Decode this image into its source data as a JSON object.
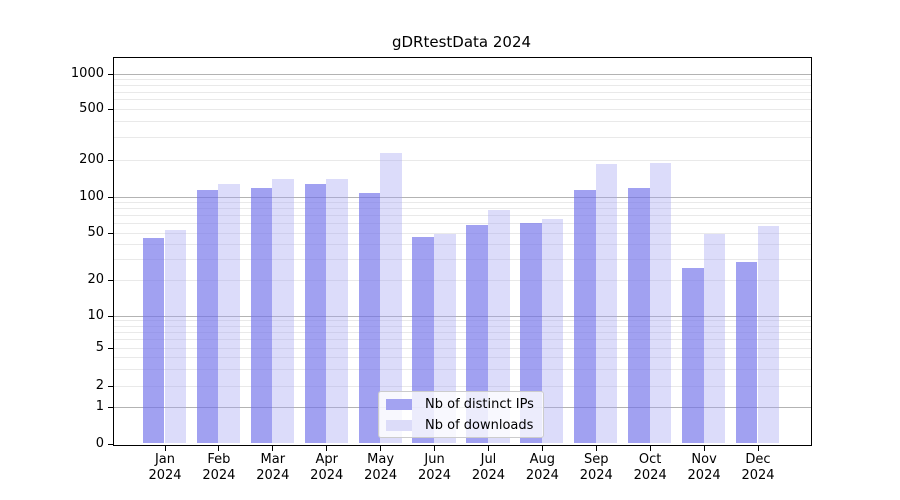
{
  "title": "gDRtestData 2024",
  "year": "2024",
  "colors": {
    "bar_distinct_ips": "rgba(113,113,234,0.66)",
    "bar_downloads": "rgba(165,165,242,0.39)",
    "bar_distinct_ips_hex": "#a3a3f1",
    "bar_downloads_hex": "#dcdcf9",
    "grid_major": "#b3b3b3",
    "grid_minor": "#e9e9e9",
    "axis": "#000000",
    "legend_border": "#cccccc"
  },
  "legend": {
    "items": [
      "Nb of distinct IPs",
      "Nb of downloads"
    ]
  },
  "chart_data": {
    "type": "bar",
    "title": "gDRtestData 2024",
    "categories": [
      "Jan 2024",
      "Feb 2024",
      "Mar 2024",
      "Apr 2024",
      "May 2024",
      "Jun 2024",
      "Jul 2024",
      "Aug 2024",
      "Sep 2024",
      "Oct 2024",
      "Nov 2024",
      "Dec 2024"
    ],
    "series": [
      {
        "name": "Nb of distinct IPs",
        "color_hex": "#a3a3f1",
        "values": [
          45,
          114,
          118,
          126,
          107,
          46,
          58,
          60,
          113,
          118,
          25,
          28
        ]
      },
      {
        "name": "Nb of downloads",
        "color_hex": "#dcdcf9",
        "values": [
          52,
          127,
          139,
          139,
          224,
          49,
          77,
          65,
          185,
          188,
          49,
          57
        ]
      }
    ],
    "xlabel": "",
    "ylabel": "",
    "yticks": [
      0,
      1,
      2,
      5,
      10,
      20,
      50,
      100,
      200,
      500,
      1000
    ],
    "yscale": "logarithmic above 1, linear 0-1",
    "ylim": [
      0,
      1350
    ],
    "grid": true,
    "legend_position": "lower center"
  }
}
